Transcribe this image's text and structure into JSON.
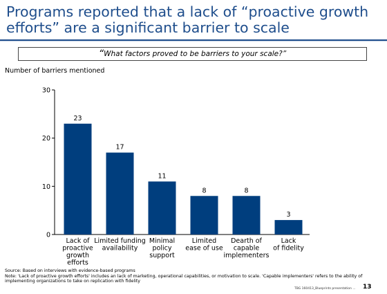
{
  "slide": {
    "title": "Programs reported that a lack of “proactive growth efforts” are a significant barrier to scale",
    "quote_open": "“",
    "quote": "What factors proved to be barriers to your scale?”",
    "source": "Source: Based on interviews with evidence-based programs",
    "note": "Note: 'Lack of proactive growth efforts' includes an lack of marketing, operational capabilities, or motivation to scale. 'Capable implementers' refers to the ability of implementing organizations to take on replication with fidelity",
    "footer_meta": "TBG 160413_Blueprints presentation ...",
    "page_number": "13"
  },
  "colors": {
    "bar": "#003e7e",
    "title": "#1f4e8c"
  },
  "chart_data": {
    "type": "bar",
    "ylabel": "Number of barriers mentioned",
    "ylim": [
      0,
      30
    ],
    "yticks": [
      0,
      10,
      20,
      30
    ],
    "categories": [
      [
        "Lack of",
        "proactive",
        "growth",
        "efforts"
      ],
      [
        "Limited funding",
        "availability"
      ],
      [
        "Minimal",
        "policy",
        "support"
      ],
      [
        "Limited",
        "ease of use"
      ],
      [
        "Dearth of",
        "capable",
        "implementers"
      ],
      [
        "Lack",
        "of fidelity"
      ]
    ],
    "values": [
      23,
      17,
      11,
      8,
      8,
      3
    ]
  }
}
